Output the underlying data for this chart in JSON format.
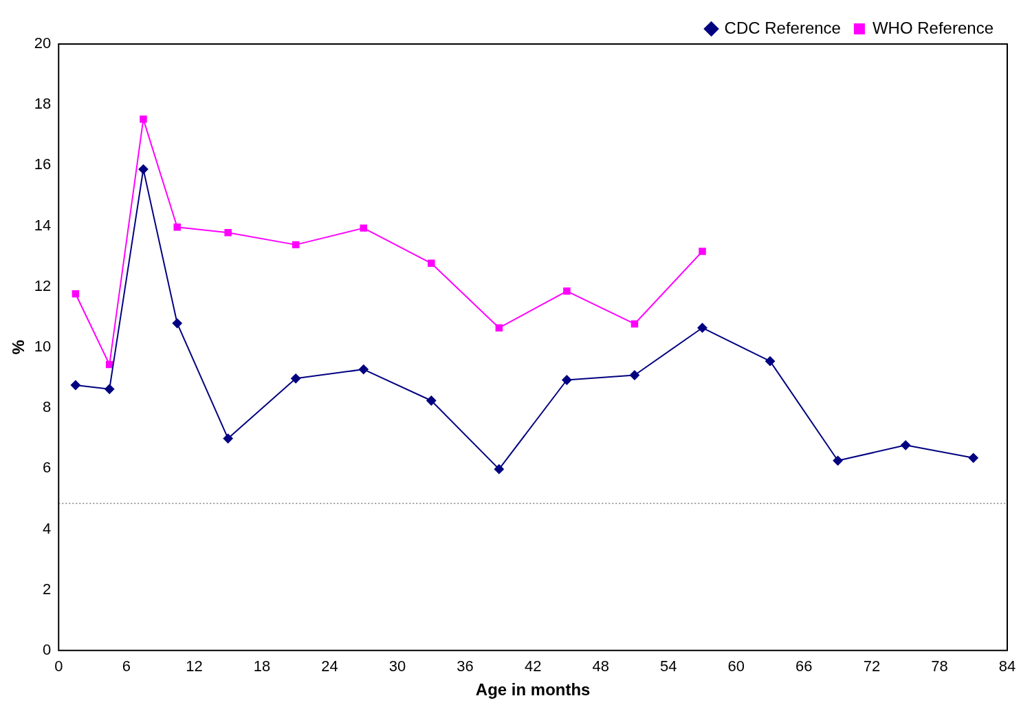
{
  "chart_data": {
    "type": "line",
    "xlabel": "Age in months",
    "ylabel": "%",
    "x": [
      1.5,
      4.5,
      7.5,
      10.5,
      15,
      21,
      27,
      33,
      39,
      45,
      51,
      57,
      63,
      69,
      75,
      81
    ],
    "series": [
      {
        "name": "CDC Reference",
        "color": "#000080",
        "marker": "diamond",
        "values": [
          8.75,
          8.62,
          15.87,
          10.79,
          6.99,
          8.97,
          9.27,
          8.24,
          5.98,
          8.92,
          9.08,
          10.64,
          9.54,
          6.26,
          6.77,
          6.35
        ]
      },
      {
        "name": "WHO Reference",
        "color": "#ff00ff",
        "marker": "square",
        "values": [
          11.76,
          9.43,
          17.52,
          13.96,
          13.78,
          13.38,
          13.93,
          12.77,
          10.64,
          11.85,
          10.77,
          13.16,
          null,
          null,
          null,
          null
        ]
      }
    ],
    "xlim": [
      0,
      84
    ],
    "xticks": [
      0,
      6,
      12,
      18,
      24,
      30,
      36,
      42,
      48,
      54,
      60,
      66,
      72,
      78,
      84
    ],
    "ylim": [
      0,
      20
    ],
    "yticks": [
      0,
      2,
      4,
      6,
      8,
      10,
      12,
      14,
      16,
      18,
      20
    ],
    "ref_lines": [
      {
        "axis": "y",
        "value": 4.85,
        "color": "#a0a0a0",
        "line_style": "dotted"
      }
    ],
    "grid": false,
    "legend": "top right",
    "line_style": "solid"
  }
}
